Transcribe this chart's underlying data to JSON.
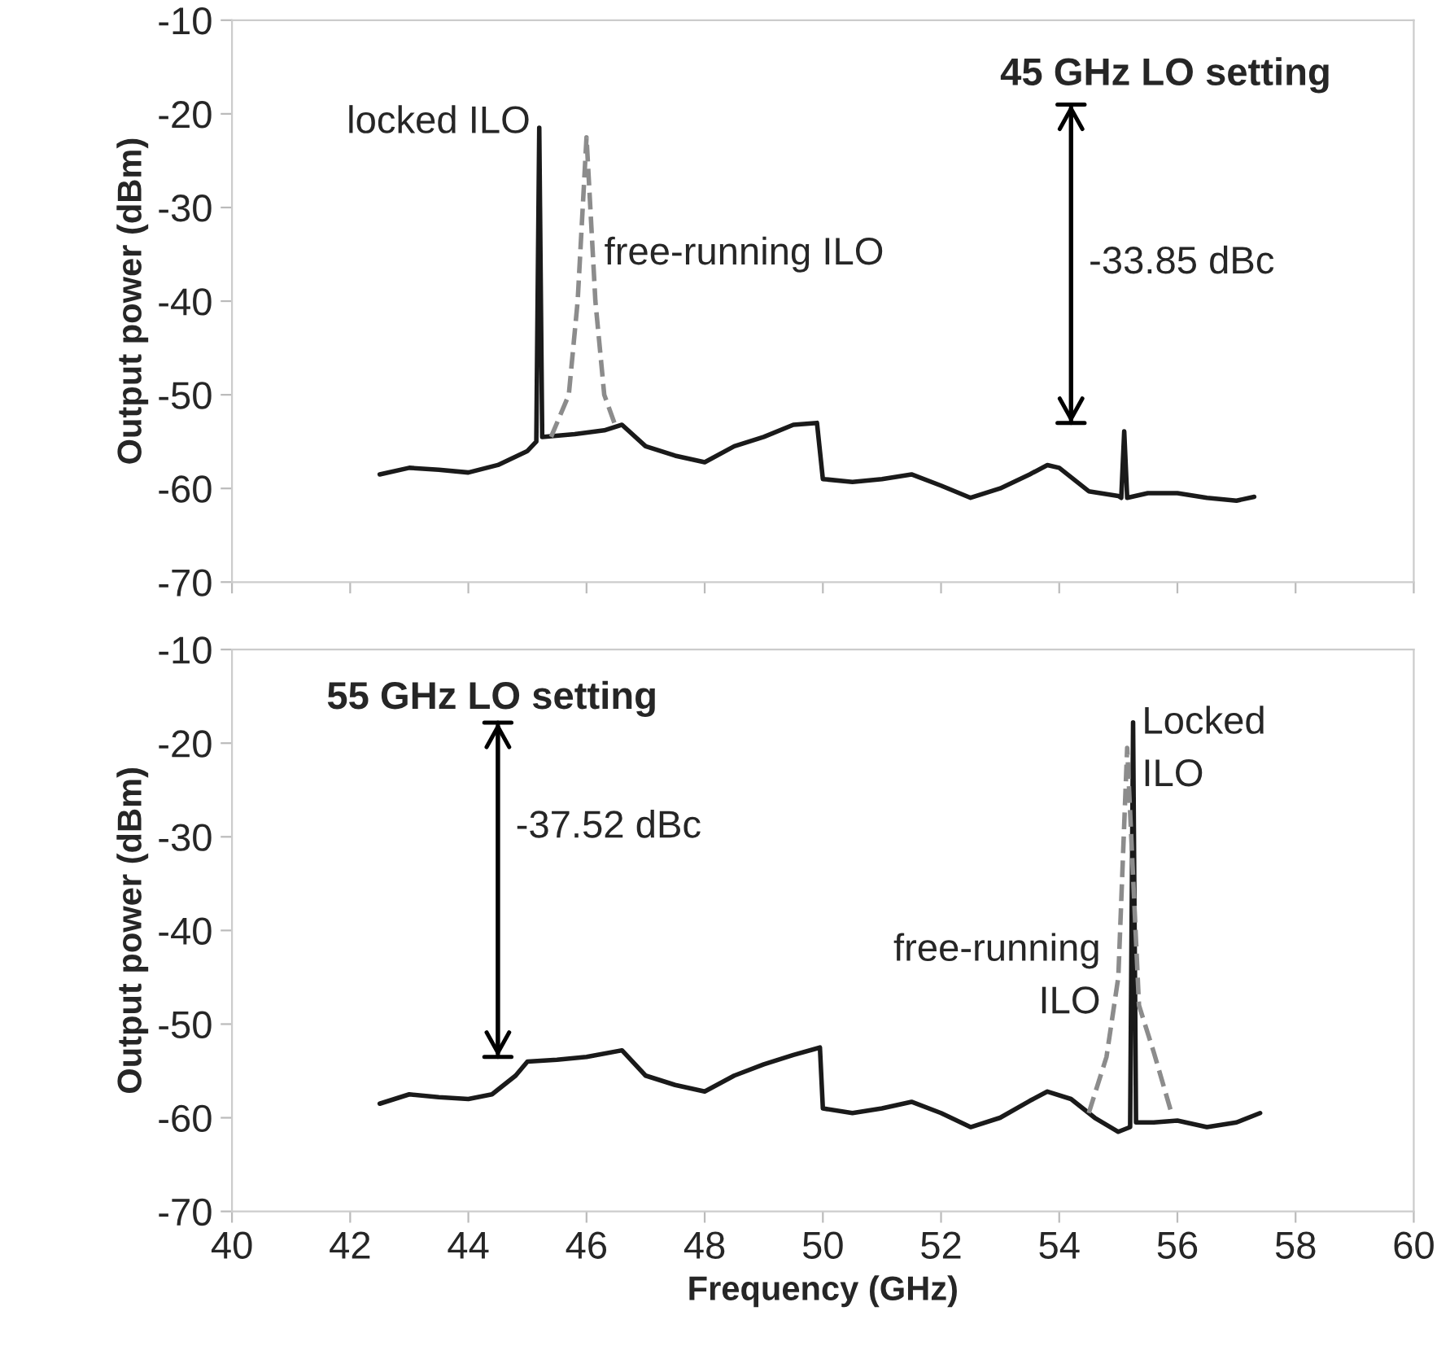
{
  "chart_data": [
    {
      "type": "line",
      "ylabel": "Output power (dBm)",
      "xlim": [
        40,
        60
      ],
      "xticks": [
        40,
        42,
        44,
        46,
        48,
        50,
        52,
        54,
        56,
        58,
        60
      ],
      "ylim": [
        -70,
        -10
      ],
      "yticks": [
        -70,
        -60,
        -50,
        -40,
        -30,
        -20,
        -10
      ],
      "tick_labels": "y",
      "grid": false,
      "legend": false,
      "marker": "none",
      "series": [
        {
          "color": "#1a1a1a",
          "line_style": "solid",
          "x": [
            42.5,
            43,
            43.5,
            44,
            44.5,
            45,
            45.15,
            45.2,
            45.25,
            45.8,
            46.3,
            46.6,
            47,
            47.5,
            48,
            48.5,
            49,
            49.5,
            49.9,
            50,
            50.5,
            51,
            51.5,
            52,
            52.5,
            53,
            53.5,
            53.8,
            54,
            54.5,
            55,
            55.05,
            55.1,
            55.15,
            55.5,
            56,
            56.5,
            57,
            57.3
          ],
          "values": [
            -58.5,
            -57.8,
            -58,
            -58.3,
            -57.5,
            -56,
            -55,
            -21.5,
            -54.5,
            -54.2,
            -53.8,
            -53.2,
            -55.5,
            -56.5,
            -57.2,
            -55.5,
            -54.5,
            -53.2,
            -53,
            -59,
            -59.3,
            -59,
            -58.5,
            -59.7,
            -61,
            -60,
            -58.5,
            -57.5,
            -57.8,
            -60.3,
            -60.8,
            -61,
            -53.9,
            -61,
            -60.5,
            -60.5,
            -61,
            -61.3,
            -60.9
          ]
        },
        {
          "color": "#8c8c8c",
          "line_style": "dashed",
          "x": [
            45.4,
            45.7,
            45.85,
            46.0,
            46.15,
            46.3,
            46.5
          ],
          "values": [
            -54.5,
            -50,
            -40,
            -22.5,
            -40,
            -50,
            -53.5
          ]
        }
      ],
      "annotations": [
        "45 GHz LO setting",
        "-33.85 dBc",
        "locked ILO",
        "free-running ILO"
      ]
    },
    {
      "type": "line",
      "xlabel": "Frequency (GHz)",
      "ylabel": "Output power (dBm)",
      "xlim": [
        40,
        60
      ],
      "xticks": [
        40,
        42,
        44,
        46,
        48,
        50,
        52,
        54,
        56,
        58,
        60
      ],
      "ylim": [
        -70,
        -10
      ],
      "yticks": [
        -70,
        -60,
        -50,
        -40,
        -30,
        -20,
        -10
      ],
      "grid": false,
      "legend": false,
      "marker": "none",
      "series": [
        {
          "color": "#1a1a1a",
          "line_style": "solid",
          "x": [
            42.5,
            43,
            43.5,
            44,
            44.4,
            44.8,
            45,
            45.5,
            46,
            46.6,
            47,
            47.5,
            48,
            48.5,
            49,
            49.5,
            49.95,
            50,
            50.5,
            51,
            51.5,
            52,
            52.5,
            53,
            53.5,
            53.8,
            54.2,
            54.6,
            55,
            55.2,
            55.25,
            55.3,
            55.6,
            56,
            56.5,
            57,
            57.4
          ],
          "values": [
            -58.5,
            -57.5,
            -57.8,
            -58,
            -57.5,
            -55.5,
            -54,
            -53.8,
            -53.5,
            -52.8,
            -55.5,
            -56.5,
            -57.2,
            -55.5,
            -54.3,
            -53.3,
            -52.5,
            -59,
            -59.5,
            -59,
            -58.3,
            -59.5,
            -61,
            -60,
            -58.2,
            -57.2,
            -58,
            -60,
            -61.5,
            -61,
            -17.8,
            -60.5,
            -60.5,
            -60.3,
            -61,
            -60.5,
            -59.5
          ]
        },
        {
          "color": "#8c8c8c",
          "line_style": "dashed",
          "x": [
            54.5,
            54.8,
            55.0,
            55.15,
            55.35,
            55.6,
            55.9
          ],
          "values": [
            -59.5,
            -53.5,
            -45,
            -20.5,
            -48,
            -53,
            -59.5
          ]
        }
      ],
      "annotations": [
        "55 GHz LO setting",
        "-37.52 dBc",
        "Locked\nILO",
        "free-running\nILO"
      ]
    }
  ]
}
